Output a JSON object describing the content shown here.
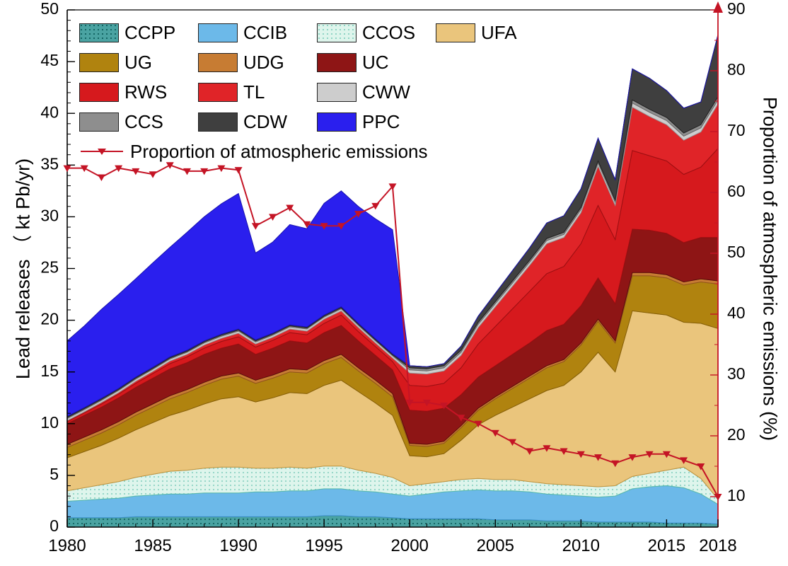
{
  "figure": {
    "left_axis_title": "Lead releases （ kt Pb/yr)",
    "right_axis_title": "Proportion of atmospheric emissions (%)",
    "right_axis_color": "#c41425",
    "axis_color": "#000000"
  },
  "chart_data": {
    "type": "area",
    "title": "",
    "xlabel": "",
    "ylabel_left": "Lead releases （ kt Pb/yr)",
    "ylabel_right": "Proportion of atmospheric emissions (%)",
    "grid": false,
    "legend_position": "top-left-inside",
    "x": [
      1980,
      1981,
      1982,
      1983,
      1984,
      1985,
      1986,
      1987,
      1988,
      1989,
      1990,
      1991,
      1992,
      1993,
      1994,
      1995,
      1996,
      1997,
      1998,
      1999,
      2000,
      2001,
      2002,
      2003,
      2004,
      2005,
      2006,
      2007,
      2008,
      2009,
      2010,
      2011,
      2012,
      2013,
      2014,
      2015,
      2016,
      2017,
      2018
    ],
    "x_ticks": [
      1980,
      1985,
      1990,
      1995,
      2000,
      2005,
      2010,
      2015,
      2018
    ],
    "left_axis": {
      "min": 0,
      "max": 50,
      "ticks": [
        0,
        5,
        10,
        15,
        20,
        25,
        30,
        35,
        40,
        45,
        50
      ]
    },
    "right_axis": {
      "min": 5,
      "max": 90,
      "ticks": [
        10,
        20,
        30,
        40,
        50,
        60,
        70,
        80,
        90
      ]
    },
    "stacked_series": [
      {
        "name": "CCPP",
        "color": "#4aa3a2",
        "border": "#1f6f6e",
        "texture": "dots",
        "dot_color": "#136563",
        "values": [
          0.9,
          0.9,
          0.9,
          0.9,
          1.0,
          1.0,
          1.0,
          1.0,
          1.0,
          1.0,
          1.0,
          1.0,
          1.0,
          1.0,
          1.0,
          1.1,
          1.1,
          1.0,
          1.0,
          0.9,
          0.8,
          0.8,
          0.8,
          0.8,
          0.8,
          0.7,
          0.7,
          0.7,
          0.6,
          0.6,
          0.6,
          0.5,
          0.5,
          0.5,
          0.5,
          0.4,
          0.4,
          0.4,
          0.3
        ]
      },
      {
        "name": "CCIB",
        "color": "#6cb9e9",
        "border": "#3c8fc9",
        "values": [
          1.6,
          1.7,
          1.8,
          1.9,
          2.0,
          2.1,
          2.2,
          2.2,
          2.3,
          2.3,
          2.3,
          2.4,
          2.4,
          2.5,
          2.5,
          2.6,
          2.6,
          2.5,
          2.4,
          2.3,
          2.2,
          2.4,
          2.6,
          2.7,
          2.8,
          2.8,
          2.8,
          2.7,
          2.6,
          2.5,
          2.4,
          2.4,
          2.5,
          3.2,
          3.4,
          3.6,
          3.4,
          2.8,
          1.9
        ]
      },
      {
        "name": "CCOS",
        "color": "#def5ec",
        "border": "#5bbcab",
        "texture": "dots",
        "dot_color": "#8fd4c4",
        "values": [
          1.0,
          1.2,
          1.4,
          1.6,
          1.8,
          2.0,
          2.2,
          2.3,
          2.4,
          2.5,
          2.5,
          2.3,
          2.3,
          2.3,
          2.2,
          2.2,
          2.2,
          2.0,
          1.8,
          1.6,
          1.0,
          1.0,
          1.0,
          1.1,
          1.1,
          1.1,
          1.1,
          1.0,
          1.0,
          1.0,
          1.0,
          1.0,
          1.0,
          1.2,
          1.3,
          1.5,
          2.0,
          1.5,
          0.5
        ]
      },
      {
        "name": "UFA",
        "color": "#eac57c",
        "border": "#c3933e",
        "values": [
          3.2,
          3.5,
          3.8,
          4.2,
          4.6,
          5.0,
          5.4,
          5.8,
          6.2,
          6.6,
          6.8,
          6.4,
          6.8,
          7.2,
          7.2,
          7.8,
          8.3,
          7.6,
          6.8,
          6.0,
          2.9,
          2.6,
          2.7,
          3.8,
          5.2,
          6.2,
          7.0,
          8.0,
          9.0,
          9.6,
          11.0,
          13.0,
          11.0,
          16.0,
          15.5,
          15.0,
          14.0,
          15.0,
          16.5
        ]
      },
      {
        "name": "UG",
        "color": "#b0830f",
        "border": "#855f08",
        "values": [
          1.0,
          1.1,
          1.2,
          1.3,
          1.4,
          1.5,
          1.6,
          1.7,
          1.8,
          1.9,
          2.0,
          1.8,
          1.9,
          2.0,
          2.0,
          2.1,
          2.2,
          2.0,
          1.9,
          1.8,
          1.0,
          1.0,
          1.0,
          1.2,
          1.4,
          1.6,
          1.8,
          2.0,
          2.2,
          2.3,
          2.6,
          3.0,
          2.8,
          3.4,
          3.6,
          3.6,
          3.6,
          4.0,
          4.3
        ]
      },
      {
        "name": "UDG",
        "color": "#c77c33",
        "border": "#92541c",
        "values": [
          0.3,
          0.3,
          0.3,
          0.3,
          0.3,
          0.3,
          0.3,
          0.3,
          0.3,
          0.3,
          0.3,
          0.3,
          0.3,
          0.3,
          0.3,
          0.3,
          0.3,
          0.3,
          0.3,
          0.3,
          0.2,
          0.2,
          0.2,
          0.2,
          0.2,
          0.2,
          0.2,
          0.2,
          0.2,
          0.2,
          0.2,
          0.2,
          0.2,
          0.3,
          0.3,
          0.3,
          0.3,
          0.3,
          0.3
        ]
      },
      {
        "name": "UC",
        "color": "#8e1515",
        "border": "#5c0c0c",
        "values": [
          2.0,
          2.1,
          2.2,
          2.3,
          2.4,
          2.5,
          2.6,
          2.6,
          2.7,
          2.7,
          2.8,
          2.5,
          2.6,
          2.7,
          2.6,
          2.7,
          2.8,
          2.6,
          2.4,
          2.3,
          3.2,
          3.2,
          3.2,
          3.0,
          3.0,
          3.0,
          3.1,
          3.2,
          3.4,
          3.4,
          3.6,
          4.0,
          3.6,
          4.2,
          4.1,
          4.0,
          3.8,
          4.0,
          4.2
        ]
      },
      {
        "name": "RWS",
        "color": "#d6191d",
        "border": "#9d0f12",
        "values": [
          0.2,
          0.25,
          0.3,
          0.35,
          0.4,
          0.45,
          0.5,
          0.55,
          0.6,
          0.65,
          0.7,
          0.7,
          0.75,
          0.8,
          0.8,
          0.9,
          1.0,
          0.9,
          0.85,
          0.8,
          2.4,
          2.4,
          2.4,
          2.6,
          3.2,
          3.8,
          4.4,
          5.0,
          5.5,
          5.6,
          6.0,
          7.0,
          6.2,
          7.6,
          7.2,
          7.0,
          6.6,
          6.8,
          8.6
        ]
      },
      {
        "name": "TL",
        "color": "#e02428",
        "border": "#9d0f12",
        "values": [
          0.1,
          0.1,
          0.15,
          0.15,
          0.2,
          0.2,
          0.25,
          0.25,
          0.3,
          0.3,
          0.35,
          0.3,
          0.3,
          0.35,
          0.35,
          0.4,
          0.4,
          0.4,
          0.35,
          0.35,
          1.2,
          1.2,
          1.2,
          1.2,
          1.6,
          1.9,
          2.2,
          2.5,
          2.9,
          2.8,
          3.0,
          3.8,
          3.3,
          4.2,
          3.8,
          3.5,
          3.3,
          3.4,
          4.3
        ]
      },
      {
        "name": "CWW",
        "color": "#cdcdcd",
        "border": "#9b9b9b",
        "values": [
          0.2,
          0.2,
          0.2,
          0.2,
          0.2,
          0.2,
          0.2,
          0.2,
          0.2,
          0.2,
          0.2,
          0.2,
          0.2,
          0.2,
          0.2,
          0.2,
          0.2,
          0.2,
          0.2,
          0.2,
          0.3,
          0.3,
          0.3,
          0.3,
          0.3,
          0.3,
          0.3,
          0.3,
          0.3,
          0.3,
          0.3,
          0.3,
          0.3,
          0.4,
          0.4,
          0.4,
          0.4,
          0.4,
          0.4
        ]
      },
      {
        "name": "CCS",
        "color": "#8e8e8e",
        "border": "#666666",
        "values": [
          0.1,
          0.1,
          0.1,
          0.1,
          0.1,
          0.1,
          0.1,
          0.1,
          0.1,
          0.1,
          0.1,
          0.1,
          0.1,
          0.1,
          0.1,
          0.1,
          0.1,
          0.1,
          0.1,
          0.1,
          0.2,
          0.2,
          0.2,
          0.2,
          0.2,
          0.2,
          0.2,
          0.2,
          0.2,
          0.2,
          0.2,
          0.2,
          0.2,
          0.3,
          0.3,
          0.3,
          0.3,
          0.3,
          0.3
        ]
      },
      {
        "name": "CDW",
        "color": "#3f3f3f",
        "border": "#202020",
        "values": [
          0.1,
          0.1,
          0.1,
          0.1,
          0.1,
          0.1,
          0.1,
          0.1,
          0.1,
          0.1,
          0.1,
          0.1,
          0.1,
          0.1,
          0.1,
          0.1,
          0.1,
          0.1,
          0.1,
          0.1,
          0.2,
          0.2,
          0.2,
          0.4,
          0.6,
          0.8,
          1.0,
          1.2,
          1.5,
          1.6,
          1.8,
          2.2,
          2.0,
          3.0,
          3.0,
          2.6,
          2.4,
          2.2,
          6.0
        ]
      },
      {
        "name": "PPC",
        "color": "#2a1fee",
        "border": "#1812ae",
        "values": [
          7.3,
          7.9,
          8.6,
          9.1,
          9.5,
          10.1,
          10.6,
          11.4,
          12.0,
          12.6,
          13.1,
          8.4,
          8.8,
          9.7,
          9.5,
          10.8,
          11.2,
          11.3,
          11.6,
          12.0,
          0,
          0,
          0,
          0,
          0,
          0,
          0,
          0,
          0,
          0,
          0,
          0,
          0,
          0,
          0,
          0,
          0,
          0,
          0
        ]
      }
    ],
    "line_series": {
      "name": "Proportion of atmospheric emissions",
      "color": "#c41425",
      "marker": "triangle-down",
      "axis": "right",
      "values": [
        64,
        64,
        62.5,
        64,
        63.5,
        63,
        64.5,
        63.5,
        63.5,
        64,
        63.7,
        54.5,
        56,
        57.5,
        54.8,
        54.5,
        54.5,
        56.5,
        57.8,
        61,
        25.5,
        25.5,
        25,
        23,
        22,
        20.5,
        19,
        17.5,
        18,
        17.5,
        17,
        16.5,
        15.5,
        16.5,
        17,
        17,
        16,
        15,
        10
      ]
    },
    "legend_rows": [
      [
        "CCPP",
        "CCIB",
        "CCOS",
        "UFA"
      ],
      [
        "UG",
        "UDG",
        "UC"
      ],
      [
        "RWS",
        "TL",
        "CWW"
      ],
      [
        "CCS",
        "CDW",
        "PPC"
      ]
    ]
  }
}
